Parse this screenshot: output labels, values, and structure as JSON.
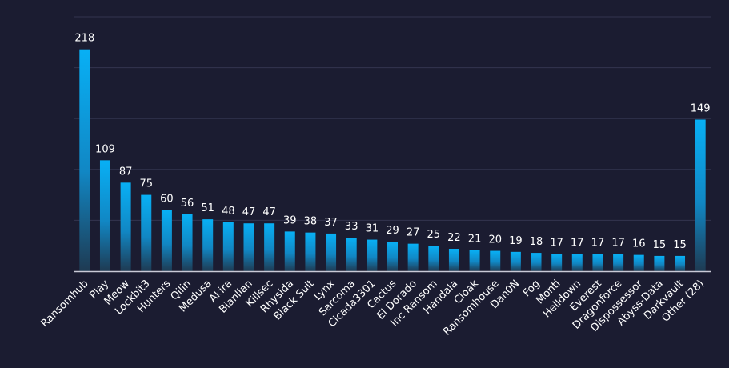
{
  "chart_data": {
    "type": "bar",
    "title": "",
    "xlabel": "",
    "ylabel": "",
    "ylim": [
      0,
      250
    ],
    "grid": true,
    "categories": [
      "Ransomhub",
      "Play",
      "Meow",
      "Lockbit3",
      "Hunters",
      "Qilin",
      "Medusa",
      "Akira",
      "Bianlian",
      "Killsec",
      "Rhysida",
      "Black Suit",
      "Lynx",
      "Sarcoma",
      "Cicada3301",
      "Cactus",
      "El Dorado",
      "Inc Ransom",
      "Handala",
      "Cloak",
      "Ransomhouse",
      "Dan0N",
      "Fog",
      "Monti",
      "Helldown",
      "Everest",
      "Dragonforce",
      "Dispossessor",
      "Abyss-Data",
      "Darkvault",
      "Other (28)"
    ],
    "values": [
      218,
      109,
      87,
      75,
      60,
      56,
      51,
      48,
      47,
      47,
      39,
      38,
      37,
      33,
      31,
      29,
      27,
      25,
      22,
      21,
      20,
      19,
      18,
      17,
      17,
      17,
      17,
      16,
      15,
      15,
      149
    ],
    "value_labels": [
      "218",
      "109",
      "87",
      "75",
      "60",
      "56",
      "51",
      "48",
      "47",
      "47",
      "39",
      "38",
      "37",
      "33",
      "31",
      "29",
      "27",
      "25",
      "22",
      "21",
      "20",
      "19",
      "18",
      "17",
      "17",
      "17",
      "17",
      "16",
      "15",
      "15",
      "149"
    ],
    "colors": {
      "background": "#1b1c31",
      "bar_top": "#08b0f5",
      "bar_bottom": "#1e3a52",
      "grid": "#33344f",
      "axis": "#c9c9d6",
      "text": "#ffffff"
    }
  }
}
